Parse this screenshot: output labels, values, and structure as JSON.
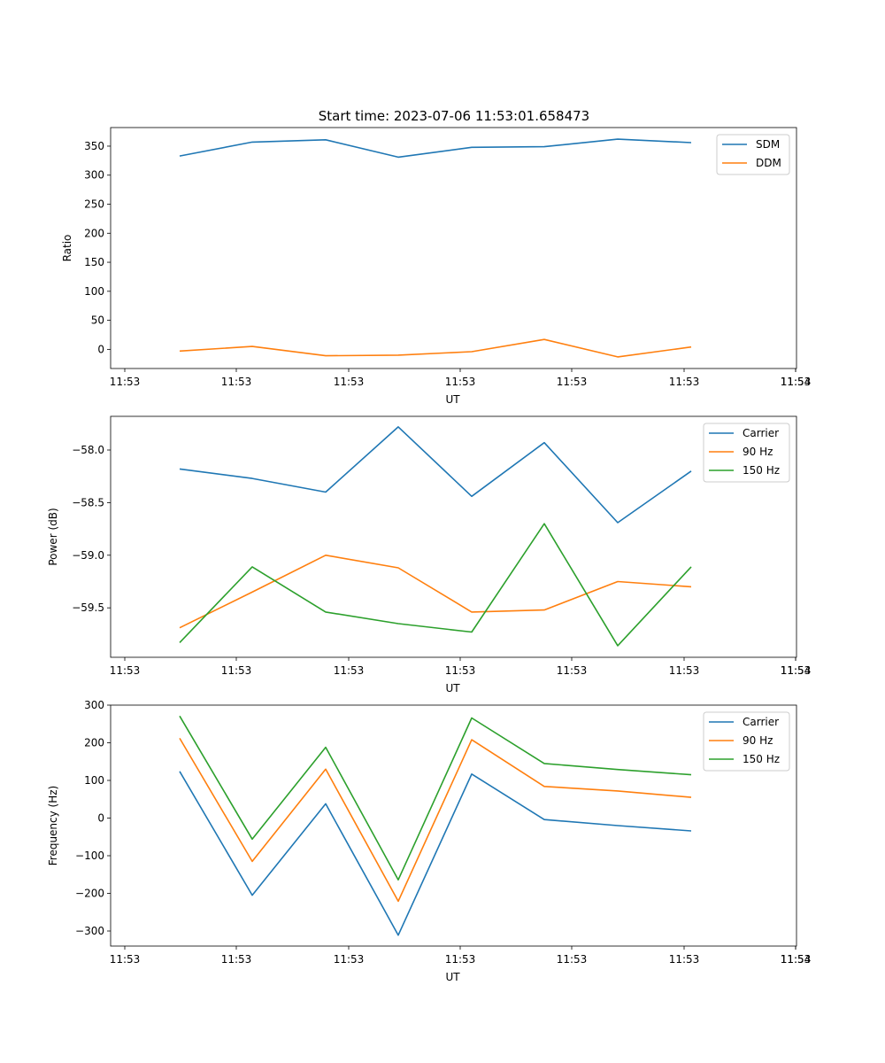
{
  "figure_title": "Start time: 2023-07-06 11:53:01.658473",
  "colors": {
    "blue": "#1f77b4",
    "orange": "#ff7f0e",
    "green": "#2ca02c"
  },
  "chart_data": [
    {
      "type": "line",
      "title": "Start time: 2023-07-06 11:53:01.658473",
      "xlabel": "UT",
      "ylabel": "Ratio",
      "x_tick_labels": [
        "11:53",
        "11:53",
        "11:53",
        "11:53",
        "11:53",
        "11:53",
        "11:53"
      ],
      "x_last_tick_label": "11:54",
      "ylim": [
        -33,
        382
      ],
      "y_ticks": [
        0,
        50,
        100,
        150,
        200,
        250,
        300,
        350
      ],
      "y_tick_labels": [
        "0",
        "50",
        "100",
        "150",
        "200",
        "250",
        "300",
        "350"
      ],
      "legend_position": "upper right",
      "series": [
        {
          "name": "SDM",
          "color": "#1f77b4",
          "values": [
            333,
            357,
            361,
            331,
            348,
            349,
            362,
            356
          ]
        },
        {
          "name": "DDM",
          "color": "#ff7f0e",
          "values": [
            -3,
            5,
            -11,
            -10,
            -4,
            17,
            -13,
            4
          ]
        }
      ]
    },
    {
      "type": "line",
      "xlabel": "UT",
      "ylabel": "Power (dB)",
      "x_tick_labels": [
        "11:53",
        "11:53",
        "11:53",
        "11:53",
        "11:53",
        "11:53",
        "11:53"
      ],
      "x_last_tick_label": "11:54",
      "ylim": [
        -59.97,
        -57.68
      ],
      "y_ticks": [
        -59.5,
        -59.0,
        -58.5,
        -58.0
      ],
      "y_tick_labels": [
        "−59.5",
        "−59.0",
        "−58.5",
        "−58.0"
      ],
      "legend_position": "upper right",
      "series": [
        {
          "name": "Carrier",
          "color": "#1f77b4",
          "values": [
            -58.18,
            -58.27,
            -58.4,
            -57.78,
            -58.44,
            -57.93,
            -58.69,
            -58.2
          ]
        },
        {
          "name": "90 Hz",
          "color": "#ff7f0e",
          "values": [
            -59.69,
            -59.35,
            -59.0,
            -59.12,
            -59.54,
            -59.52,
            -59.25,
            -59.3
          ]
        },
        {
          "name": "150 Hz",
          "color": "#2ca02c",
          "values": [
            -59.83,
            -59.11,
            -59.54,
            -59.65,
            -59.73,
            -58.7,
            -59.86,
            -59.11
          ]
        }
      ]
    },
    {
      "type": "line",
      "xlabel": "UT",
      "ylabel": "Frequency (Hz)",
      "x_tick_labels": [
        "11:53",
        "11:53",
        "11:53",
        "11:53",
        "11:53",
        "11:53",
        "11:53"
      ],
      "x_last_tick_label": "11:54",
      "ylim": [
        -340,
        300
      ],
      "y_ticks": [
        -300,
        -200,
        -100,
        0,
        100,
        200,
        300
      ],
      "y_tick_labels": [
        "−300",
        "−200",
        "−100",
        "0",
        "100",
        "200",
        "300"
      ],
      "legend_position": "upper right",
      "series": [
        {
          "name": "Carrier",
          "color": "#1f77b4",
          "values": [
            124,
            -205,
            38,
            -311,
            117,
            -4,
            -20,
            -34
          ]
        },
        {
          "name": "90 Hz",
          "color": "#ff7f0e",
          "values": [
            212,
            -115,
            130,
            -221,
            208,
            84,
            72,
            55
          ]
        },
        {
          "name": "150 Hz",
          "color": "#2ca02c",
          "values": [
            271,
            -56,
            188,
            -164,
            266,
            145,
            129,
            115
          ]
        }
      ]
    }
  ]
}
